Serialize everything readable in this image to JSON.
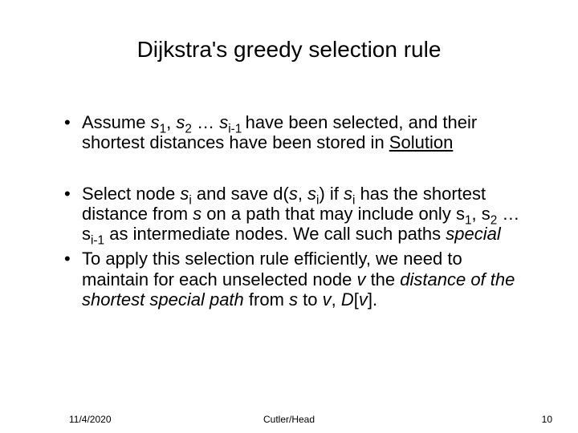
{
  "slide": {
    "title": "Dijkstra's greedy selection rule",
    "bullets": [
      {
        "prefix1": "Assume ",
        "s_base": "s",
        "sub1": "1",
        "comma": ", ",
        "sub2": "2",
        "ellipsis": " … ",
        "sub_im1": "i-1 ",
        "rest": "have been selected, and their shortest distances have been stored in ",
        "solution_word": "Solution"
      },
      {
        "t1": "Select node ",
        "s_base": "s",
        "sub_i": "i",
        "t2": " and save d(",
        "s_plain": "s",
        "t3": ", ",
        "t4": ") if ",
        "t5": " has the shortest distance from ",
        "t6": " on a path that may include only ",
        "sub1": "1",
        "t7": ", ",
        "sub2": "2",
        "t8": " … ",
        "sub_im1": "i-1",
        "t9": " as intermediate nodes. We call such paths ",
        "special_word": "special"
      },
      {
        "t1": "To apply this selection rule efficiently, we need to maintain for each unselected node ",
        "v": "v",
        "t2": " the ",
        "emph": "distance of the shortest special path",
        "t3": " from ",
        "s": "s",
        "t4": " to ",
        "t5": ", ",
        "d_arr": "D",
        "lb": "[",
        "rb": "].",
        "v2": "v"
      }
    ],
    "footer": {
      "date": "11/4/2020",
      "center": "Cutler/Head",
      "page": "10"
    }
  },
  "style": {
    "bg": "#ffffff",
    "text_color": "#000000",
    "title_fontsize": 28,
    "body_fontsize": 22,
    "footer_fontsize": 12
  }
}
